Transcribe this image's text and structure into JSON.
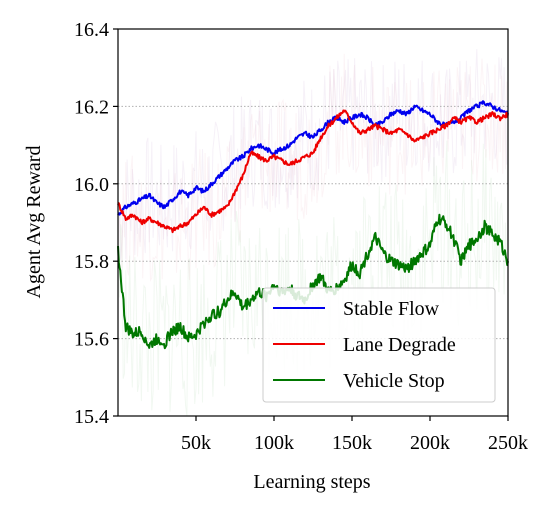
{
  "chart_data": {
    "type": "line",
    "title": "",
    "xlabel": "Learning steps",
    "ylabel": "Agent Avg Reward",
    "xlim": [
      0,
      250000
    ],
    "ylim": [
      15.4,
      16.4
    ],
    "x_ticks": [
      {
        "value": 50000,
        "label": "50k"
      },
      {
        "value": 100000,
        "label": "100k"
      },
      {
        "value": 150000,
        "label": "150k"
      },
      {
        "value": 200000,
        "label": "200k"
      },
      {
        "value": 250000,
        "label": "250k"
      }
    ],
    "y_ticks": [
      {
        "value": 15.4,
        "label": "15.4"
      },
      {
        "value": 15.6,
        "label": "15.6"
      },
      {
        "value": 15.8,
        "label": "15.8"
      },
      {
        "value": 16.0,
        "label": "16.0"
      },
      {
        "value": 16.2,
        "label": "16.2"
      },
      {
        "value": 16.4,
        "label": "16.4"
      }
    ],
    "grid": "horizontal dotted",
    "legend_position": "lower-right",
    "x": [
      0,
      5000,
      10000,
      15000,
      20000,
      25000,
      30000,
      35000,
      40000,
      45000,
      50000,
      55000,
      60000,
      65000,
      70000,
      75000,
      80000,
      85000,
      90000,
      95000,
      100000,
      105000,
      110000,
      115000,
      120000,
      125000,
      130000,
      135000,
      140000,
      145000,
      150000,
      155000,
      160000,
      165000,
      170000,
      175000,
      180000,
      185000,
      190000,
      195000,
      200000,
      205000,
      210000,
      215000,
      220000,
      225000,
      230000,
      235000,
      240000,
      245000,
      250000
    ],
    "series": [
      {
        "name": "Stable Flow",
        "color": "#0000ee",
        "values": [
          15.92,
          15.94,
          15.95,
          15.96,
          15.97,
          15.95,
          15.94,
          15.96,
          15.98,
          15.97,
          15.99,
          15.98,
          16.0,
          16.02,
          16.04,
          16.06,
          16.07,
          16.09,
          16.1,
          16.09,
          16.08,
          16.09,
          16.1,
          16.12,
          16.13,
          16.12,
          16.14,
          16.16,
          16.17,
          16.16,
          16.17,
          16.18,
          16.17,
          16.15,
          16.16,
          16.18,
          16.19,
          16.18,
          16.2,
          16.19,
          16.18,
          16.16,
          16.15,
          16.16,
          16.17,
          16.19,
          16.2,
          16.21,
          16.2,
          16.19,
          16.18
        ]
      },
      {
        "name": "Lane Degrade",
        "color": "#ee0000",
        "values": [
          15.95,
          15.91,
          15.92,
          15.9,
          15.91,
          15.9,
          15.89,
          15.88,
          15.89,
          15.9,
          15.92,
          15.94,
          15.92,
          15.93,
          15.94,
          15.98,
          16.02,
          16.08,
          16.07,
          16.06,
          16.07,
          16.06,
          16.05,
          16.06,
          16.07,
          16.08,
          16.12,
          16.15,
          16.17,
          16.19,
          16.16,
          16.13,
          16.14,
          16.15,
          16.14,
          16.13,
          16.14,
          16.13,
          16.11,
          16.12,
          16.13,
          16.14,
          16.15,
          16.17,
          16.16,
          16.17,
          16.16,
          16.17,
          16.18,
          16.17,
          16.18
        ]
      },
      {
        "name": "Vehicle Stop",
        "color": "#007700",
        "values": [
          15.83,
          15.63,
          15.61,
          15.62,
          15.58,
          15.6,
          15.59,
          15.62,
          15.63,
          15.6,
          15.61,
          15.64,
          15.66,
          15.67,
          15.7,
          15.72,
          15.68,
          15.7,
          15.72,
          15.71,
          15.74,
          15.72,
          15.73,
          15.71,
          15.7,
          15.74,
          15.76,
          15.72,
          15.73,
          15.75,
          15.79,
          15.77,
          15.82,
          15.86,
          15.82,
          15.8,
          15.79,
          15.78,
          15.8,
          15.82,
          15.84,
          15.91,
          15.9,
          15.86,
          15.8,
          15.84,
          15.86,
          15.89,
          15.87,
          15.85,
          15.8
        ]
      }
    ]
  }
}
